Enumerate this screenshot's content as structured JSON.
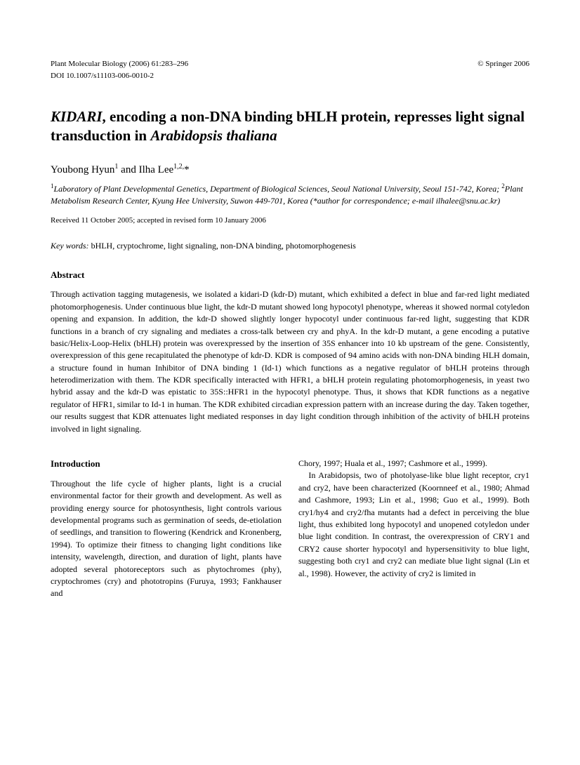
{
  "header": {
    "journal_ref": "Plant Molecular Biology (2006) 61:283–296",
    "copyright": "© Springer 2006",
    "doi": "DOI 10.1007/s11103-006-0010-2"
  },
  "title_parts": {
    "p1": "KIDARI",
    "p2": ", encoding a non-DNA binding bHLH protein, represses light signal transduction in ",
    "p3": "Arabidopsis thaliana"
  },
  "authors": {
    "a1_name": "Youbong Hyun",
    "a1_sup": "1",
    "sep": " and ",
    "a2_name": "Ilha Lee",
    "a2_sup": "1,2,",
    "a2_mark": "*"
  },
  "affiliations": {
    "sup1": "1",
    "aff1": "Laboratory of Plant Developmental Genetics, Department of Biological Sciences, Seoul National University, Seoul 151-742, Korea; ",
    "sup2": "2",
    "aff2": "Plant Metabolism Research Center, Kyung Hee University, Suwon 449-701, Korea (*author for correspondence; e-mail ilhalee@snu.ac.kr)"
  },
  "received": "Received 11 October 2005; accepted in revised form 10 January 2006",
  "keywords_label": "Key words:",
  "keywords_text": " bHLH, cryptochrome, light signaling, non-DNA binding, photomorphogenesis",
  "abstract_heading": "Abstract",
  "abstract_text": "Through activation tagging mutagenesis, we isolated a kidari-D (kdr-D) mutant, which exhibited a defect in blue and far-red light mediated photomorphogenesis. Under continuous blue light, the kdr-D mutant showed long hypocotyl phenotype, whereas it showed normal cotyledon opening and expansion. In addition, the kdr-D showed slightly longer hypocotyl under continuous far-red light, suggesting that KDR functions in a branch of cry signaling and mediates a cross-talk between cry and phyA. In the kdr-D mutant, a gene encoding a putative basic/Helix-Loop-Helix (bHLH) protein was overexpressed by the insertion of 35S enhancer into 10 kb upstream of the gene. Consistently, overexpression of this gene recapitulated the phenotype of kdr-D. KDR is composed of 94 amino acids with non-DNA binding HLH domain, a structure found in human Inhibitor of DNA binding 1 (Id-1) which functions as a negative regulator of bHLH proteins through heterodimerization with them. The KDR specifically interacted with HFR1, a bHLH protein regulating photomorphogenesis, in yeast two hybrid assay and the kdr-D was epistatic to 35S::HFR1 in the hypocotyl phenotype. Thus, it shows that KDR functions as a negative regulator of HFR1, similar to Id-1 in human. The KDR exhibited circadian expression pattern with an increase during the day. Taken together, our results suggest that KDR attenuates light mediated responses in day light condition through inhibition of the activity of bHLH proteins involved in light signaling.",
  "intro_heading": "Introduction",
  "col1_p1": "Throughout the life cycle of higher plants, light is a crucial environmental factor for their growth and development. As well as providing energy source for photosynthesis, light controls various developmental programs such as germination of seeds, de-etiolation of seedlings, and transition to flowering (Kendrick and Kronenberg, 1994). To optimize their fitness to changing light conditions like intensity, wavelength, direction, and duration of light, plants have adopted several photoreceptors such as phytochromes (phy), cryptochromes (cry) and phototropins (Furuya, 1993; Fankhauser and",
  "col2_p1": "Chory, 1997; Huala et al., 1997; Cashmore et al., 1999).",
  "col2_p2": "In Arabidopsis, two of photolyase-like blue light receptor, cry1 and cry2, have been characterized (Koornneef et al., 1980; Ahmad and Cashmore, 1993; Lin et al., 1998; Guo et al., 1999). Both cry1/hy4 and cry2/fha mutants had a defect in perceiving the blue light, thus exhibited long hypocotyl and unopened cotyledon under blue light condition. In contrast, the overexpression of CRY1 and CRY2 cause shorter hypocotyl and hypersensitivity to blue light, suggesting both cry1 and cry2 can mediate blue light signal (Lin et al., 1998). However, the activity of cry2 is limited in"
}
